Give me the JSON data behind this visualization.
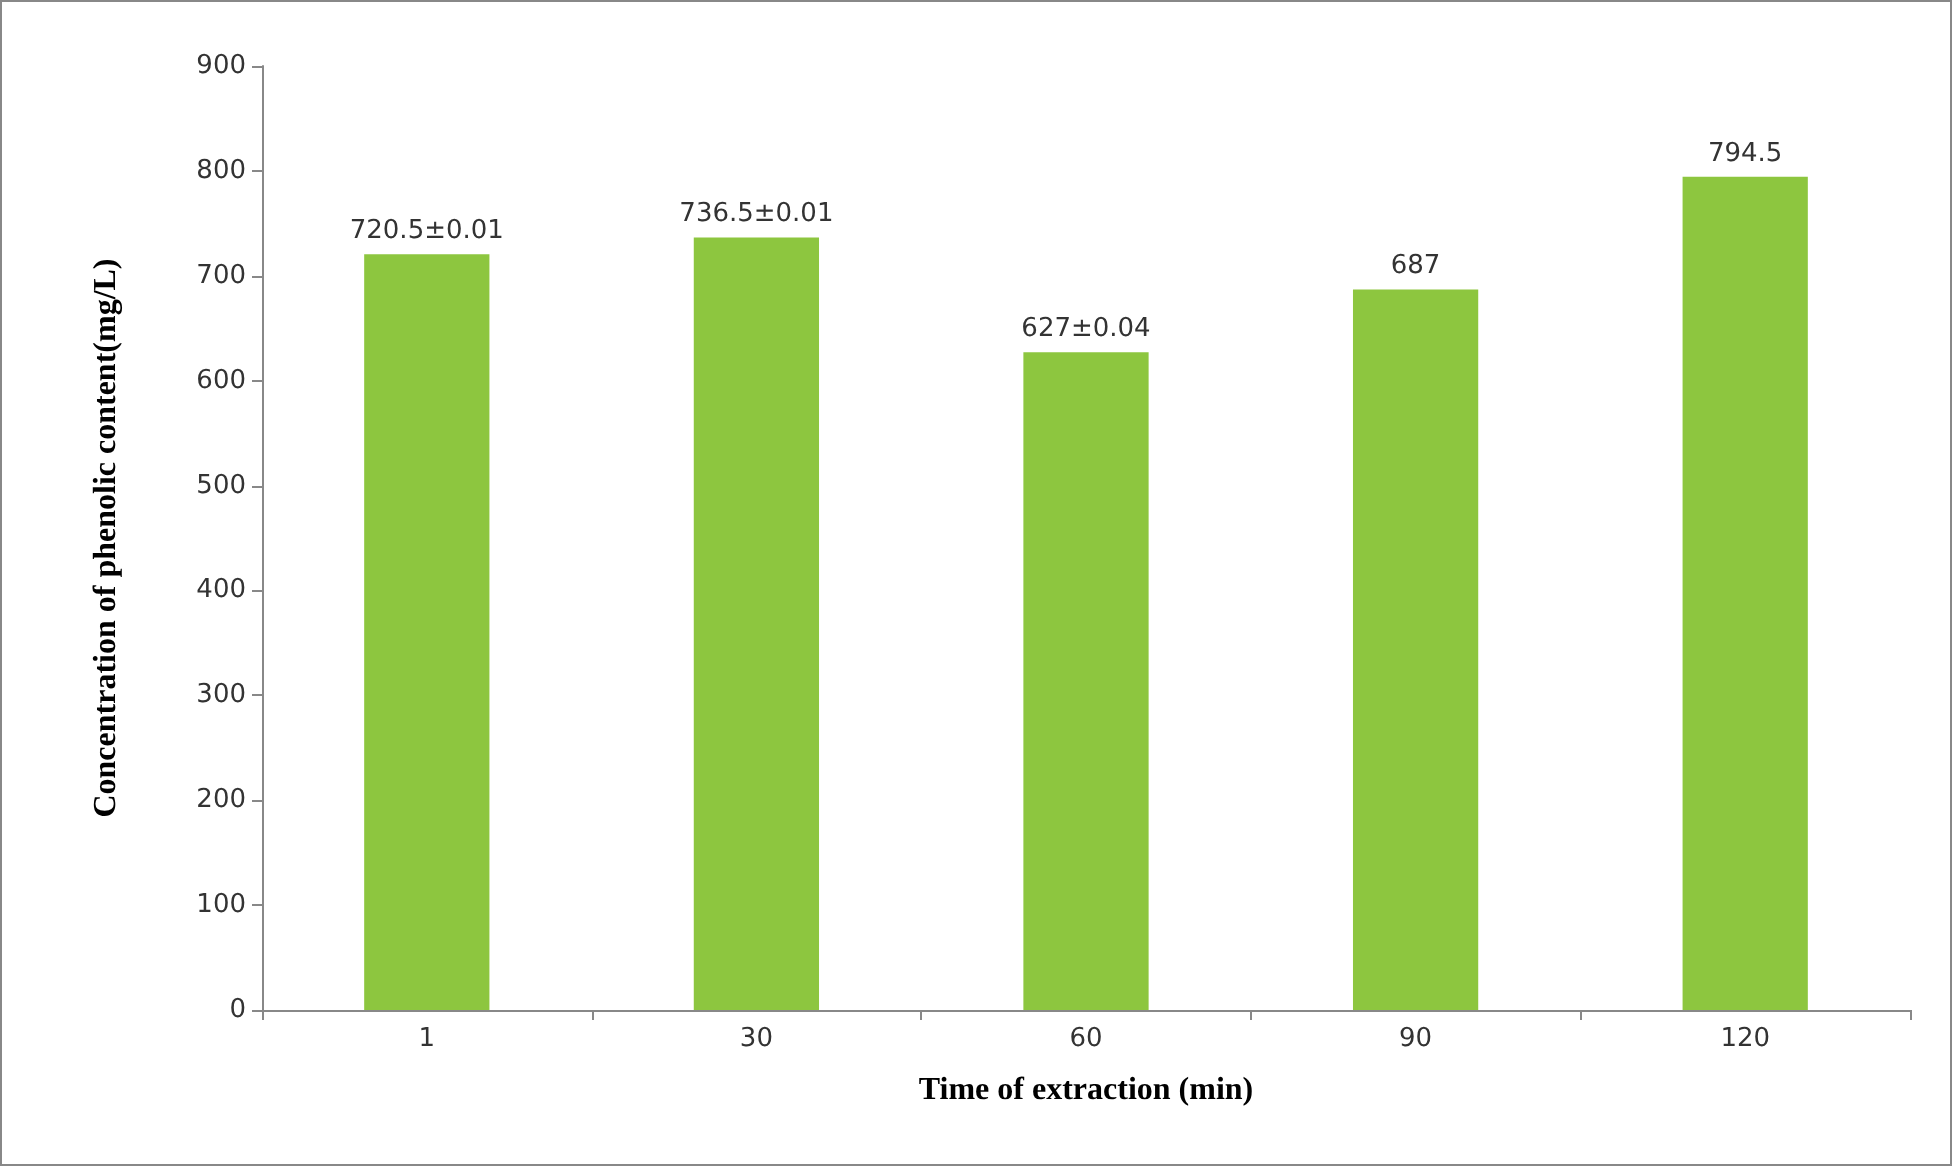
{
  "chart_data": {
    "type": "bar",
    "xlabel": "Time of extraction (min)",
    "ylabel": "Concentration of phenolic content(mg/L)",
    "categories": [
      "1",
      "30",
      "60",
      "90",
      "120"
    ],
    "values": [
      720.5,
      736.5,
      627,
      687,
      794.5
    ],
    "value_labels": [
      "720.5±0.01",
      "736.5±0.01",
      "627±0.04",
      "687",
      "794.5"
    ],
    "color": "#8dc63f",
    "ylim": [
      0,
      900
    ],
    "yticks": [
      0,
      100,
      200,
      300,
      400,
      500,
      600,
      700,
      800,
      900
    ],
    "grid": false
  }
}
